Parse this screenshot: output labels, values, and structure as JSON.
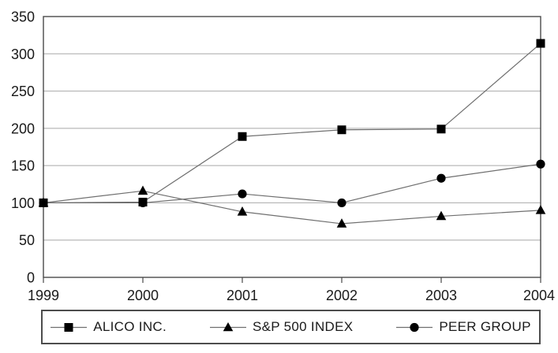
{
  "chart_data": {
    "type": "line",
    "title": "",
    "xlabel": "",
    "ylabel": "",
    "categories": [
      "1999",
      "2000",
      "2001",
      "2002",
      "2003",
      "2004"
    ],
    "series": [
      {
        "name": "ALICO INC.",
        "marker": "square",
        "values": [
          100,
          101,
          189,
          198,
          199,
          314
        ]
      },
      {
        "name": "S&P 500 INDEX",
        "marker": "triangle",
        "values": [
          100,
          116,
          88,
          72,
          82,
          90
        ]
      },
      {
        "name": "PEER GROUP",
        "marker": "circle",
        "values": [
          100,
          100,
          112,
          100,
          133,
          152
        ]
      }
    ],
    "ylim": [
      0,
      350
    ],
    "yticks": [
      0,
      50,
      100,
      150,
      200,
      250,
      300,
      350
    ],
    "grid": "horizontal",
    "legend_position": "bottom",
    "colors": {
      "series_line": "#6f6f6f",
      "marker": "#000000",
      "grid": "#a9a9a9",
      "axis": "#4a4a4a",
      "text": "#1a1a1a",
      "legend_border": "#4d4d4d",
      "background": "#ffffff"
    }
  }
}
